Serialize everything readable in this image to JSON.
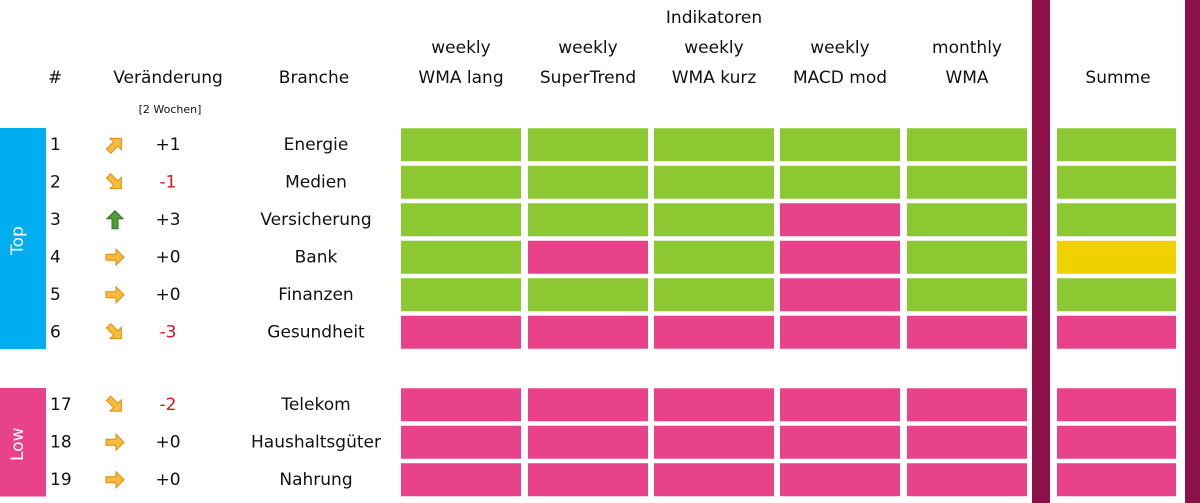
{
  "header": {
    "title": "Indikatoren",
    "rank": "#",
    "change": "Veränderung",
    "change_note": "[2 Wochen]",
    "branch": "Branche",
    "indicators": [
      [
        "weekly",
        "WMA lang"
      ],
      [
        "weekly",
        "SuperTrend"
      ],
      [
        "weekly",
        "WMA kurz"
      ],
      [
        "weekly",
        "MACD mod"
      ],
      [
        "monthly",
        "WMA"
      ]
    ],
    "sum": "Summe"
  },
  "colors": {
    "green": "#8cc832",
    "red": "#e8428a",
    "yellow": "#eed200"
  },
  "groups": [
    {
      "label": "Top",
      "color": "#00aeef",
      "rows": [
        {
          "rank": 1,
          "arrow": "up-right",
          "change": "+1",
          "branch": "Energie",
          "signals": [
            "green",
            "green",
            "green",
            "green",
            "green"
          ],
          "sum": "green"
        },
        {
          "rank": 2,
          "arrow": "down-right",
          "change": "-1",
          "branch": "Medien",
          "signals": [
            "green",
            "green",
            "green",
            "green",
            "green"
          ],
          "sum": "green"
        },
        {
          "rank": 3,
          "arrow": "up",
          "change": "+3",
          "branch": "Versicherung",
          "signals": [
            "green",
            "green",
            "green",
            "red",
            "green"
          ],
          "sum": "green"
        },
        {
          "rank": 4,
          "arrow": "right",
          "change": "+0",
          "branch": "Bank",
          "signals": [
            "green",
            "red",
            "green",
            "red",
            "green"
          ],
          "sum": "yellow"
        },
        {
          "rank": 5,
          "arrow": "right",
          "change": "+0",
          "branch": "Finanzen",
          "signals": [
            "green",
            "green",
            "green",
            "red",
            "green"
          ],
          "sum": "green"
        },
        {
          "rank": 6,
          "arrow": "down-right",
          "change": "-3",
          "branch": "Gesundheit",
          "signals": [
            "red",
            "red",
            "red",
            "red",
            "red"
          ],
          "sum": "red"
        }
      ]
    },
    {
      "label": "Low",
      "color": "#e8428a",
      "rows": [
        {
          "rank": 17,
          "arrow": "down-right",
          "change": "-2",
          "branch": "Telekom",
          "signals": [
            "red",
            "red",
            "red",
            "red",
            "red"
          ],
          "sum": "red"
        },
        {
          "rank": 18,
          "arrow": "right",
          "change": "+0",
          "branch": "Haushaltsgüter",
          "signals": [
            "red",
            "red",
            "red",
            "red",
            "red"
          ],
          "sum": "red"
        },
        {
          "rank": 19,
          "arrow": "right",
          "change": "+0",
          "branch": "Nahrung",
          "signals": [
            "red",
            "red",
            "red",
            "red",
            "red"
          ],
          "sum": "red"
        }
      ]
    }
  ]
}
